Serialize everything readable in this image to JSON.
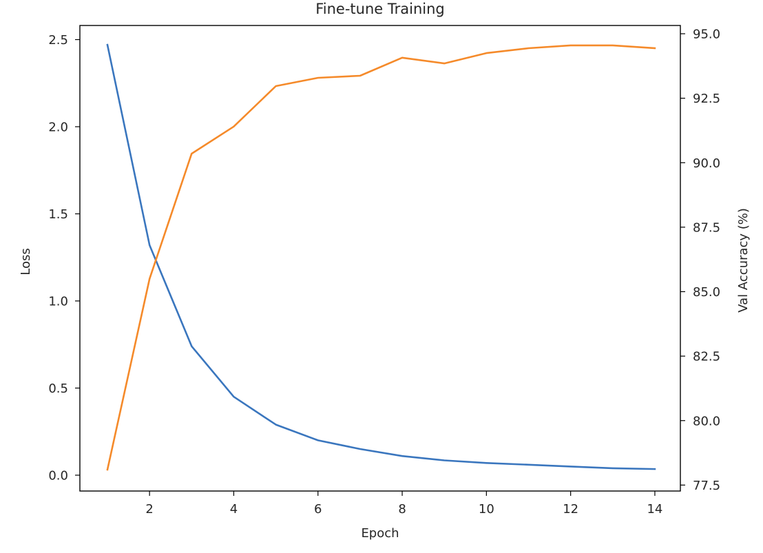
{
  "chart_data": {
    "type": "line",
    "title": "Fine-tune Training",
    "xlabel": "Epoch",
    "ylabel": "Loss",
    "y2label": "Val Accuracy (%)",
    "x": [
      1,
      2,
      3,
      4,
      5,
      6,
      7,
      8,
      9,
      10,
      11,
      12,
      13,
      14
    ],
    "xticks": [
      "2",
      "4",
      "6",
      "8",
      "10",
      "12",
      "14"
    ],
    "xlim": [
      0.35,
      14.65
    ],
    "ylim": [
      -0.09,
      2.59
    ],
    "y2lim": [
      77.27,
      95.32
    ],
    "yticks": [
      "0.0",
      "0.5",
      "1.0",
      "1.5",
      "2.0",
      "2.5"
    ],
    "y2ticks": [
      "77.5",
      "80.0",
      "82.5",
      "85.0",
      "87.5",
      "90.0",
      "92.5",
      "95.0"
    ],
    "grid": false,
    "legend": null,
    "series": [
      {
        "name": "Loss",
        "axis": "left",
        "color": "#3a76be",
        "values": [
          2.47,
          1.32,
          0.74,
          0.45,
          0.29,
          0.2,
          0.15,
          0.11,
          0.085,
          0.07,
          0.06,
          0.05,
          0.04,
          0.035
        ]
      },
      {
        "name": "Val Accuracy (%)",
        "axis": "right",
        "color": "#f58a2a",
        "values": [
          78.1,
          85.5,
          90.35,
          91.4,
          92.97,
          93.29,
          93.37,
          94.07,
          93.85,
          94.25,
          94.44,
          94.55,
          94.55,
          94.44
        ]
      }
    ]
  }
}
